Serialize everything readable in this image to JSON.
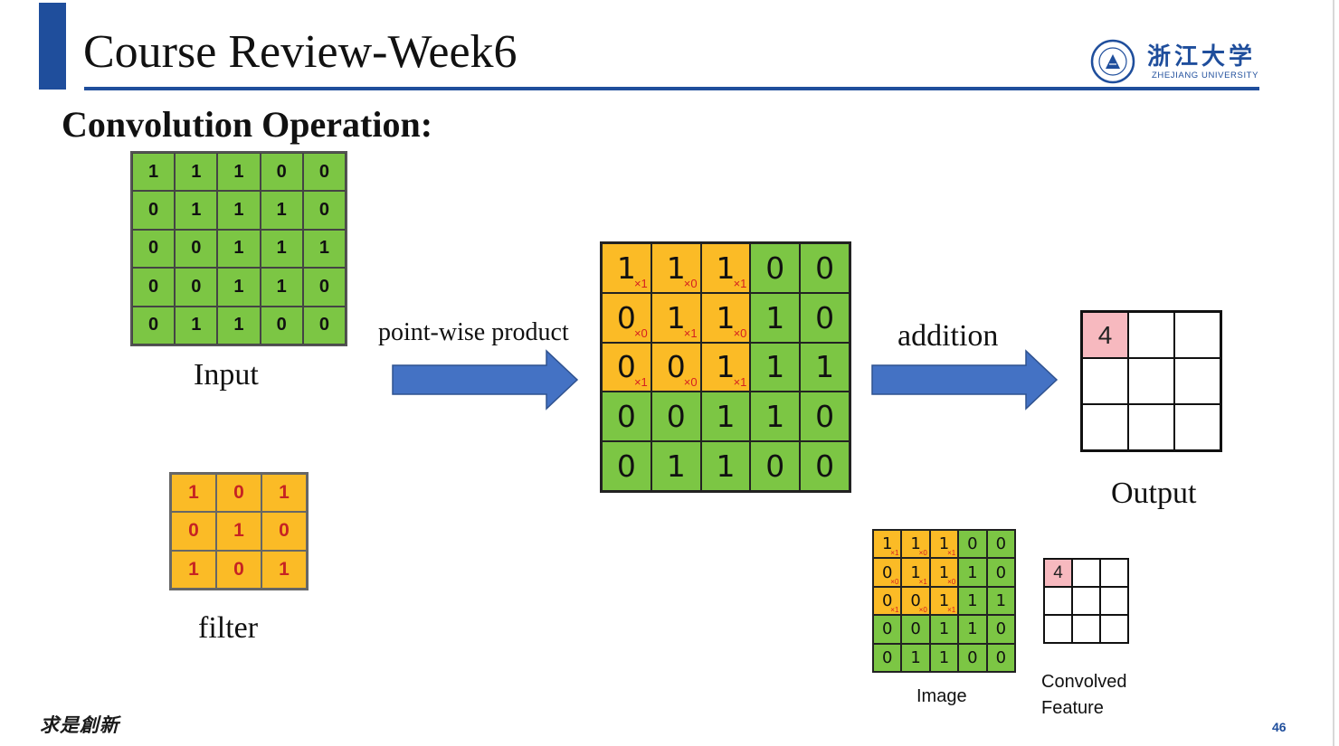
{
  "slide": {
    "title": "Course Review-Week6",
    "heading": "Convolution Operation:",
    "page_number": "46",
    "motto": "求是創新",
    "colors": {
      "brand_blue": "#1f4e9c",
      "grid_green": "#7cc644",
      "grid_orange": "#fbbb26",
      "highlight_pink": "#f7b9bf",
      "arrow_blue": "#4472c4"
    }
  },
  "logo": {
    "name_cn": "浙江大学",
    "name_en": "ZHEJIANG UNIVERSITY",
    "icon": "zju-seal-icon"
  },
  "labels": {
    "input": "Input",
    "filter": "filter",
    "pointwise": "point-wise product",
    "addition": "addition",
    "output": "Output",
    "image": "Image",
    "convolved_line1": "Convolved",
    "convolved_line2": "Feature"
  },
  "input_matrix": [
    [
      "1",
      "1",
      "1",
      "0",
      "0"
    ],
    [
      "0",
      "1",
      "1",
      "1",
      "0"
    ],
    [
      "0",
      "0",
      "1",
      "1",
      "1"
    ],
    [
      "0",
      "0",
      "1",
      "1",
      "0"
    ],
    [
      "0",
      "1",
      "1",
      "0",
      "0"
    ]
  ],
  "filter_matrix": [
    [
      "1",
      "0",
      "1"
    ],
    [
      "0",
      "1",
      "0"
    ],
    [
      "1",
      "0",
      "1"
    ]
  ],
  "weight_labels": [
    [
      "×1",
      "×0",
      "×1"
    ],
    [
      "×0",
      "×1",
      "×0"
    ],
    [
      "×1",
      "×0",
      "×1"
    ]
  ],
  "output_matrix": [
    [
      "4",
      "",
      ""
    ],
    [
      "",
      "",
      ""
    ],
    [
      "",
      "",
      ""
    ]
  ]
}
